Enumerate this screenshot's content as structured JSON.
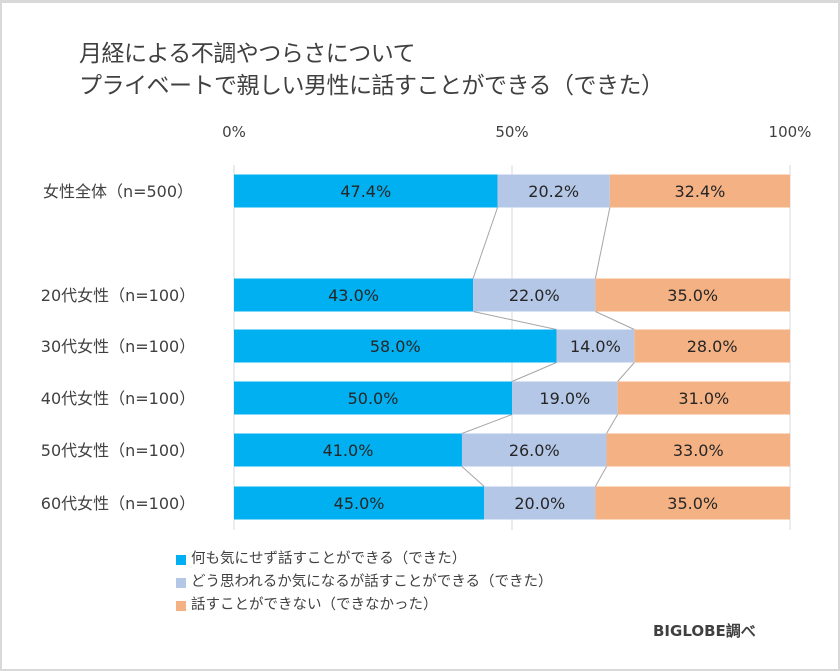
{
  "chart_data": {
    "type": "bar",
    "orientation": "horizontal",
    "stacked": "100%",
    "title": "月経による不調やつらさについて\nプライベートで親しい男性に話すことができる（できた）",
    "title_lines": [
      "月経による不調やつらさについて",
      "プライベートで親しい男性に話すことができる（できた）"
    ],
    "xlabel": "",
    "ylabel": "",
    "xlim": [
      0,
      100
    ],
    "x_ticks": [
      "0%",
      "50%",
      "100%"
    ],
    "grid": true,
    "legend_position": "bottom-left",
    "categories": [
      "女性全体（n=500）",
      "20代女性（n=100）",
      "30代女性（n=100）",
      "40代女性（n=100）",
      "50代女性（n=100）",
      "60代女性（n=100）"
    ],
    "series": [
      {
        "name": "何も気にせず話すことができる（できた）",
        "color": "#00b0f0",
        "values": [
          47.4,
          43.0,
          58.0,
          50.0,
          41.0,
          45.0
        ],
        "labels": [
          "47.4%",
          "43.0%",
          "58.0%",
          "50.0%",
          "41.0%",
          "45.0%"
        ]
      },
      {
        "name": "どう思われるか気になるが話すことができる（できた）",
        "color": "#b4c7e7",
        "values": [
          20.2,
          22.0,
          14.0,
          19.0,
          26.0,
          20.0
        ],
        "labels": [
          "20.2%",
          "22.0%",
          "14.0%",
          "19.0%",
          "26.0%",
          "20.0%"
        ]
      },
      {
        "name": "話すことができない（できなかった）",
        "color": "#f4b183",
        "values": [
          32.4,
          35.0,
          28.0,
          31.0,
          33.0,
          35.0
        ],
        "labels": [
          "32.4%",
          "35.0%",
          "28.0%",
          "31.0%",
          "33.0%",
          "35.0%"
        ]
      }
    ],
    "series_lines": true,
    "source": "BIGLOBE調べ"
  }
}
